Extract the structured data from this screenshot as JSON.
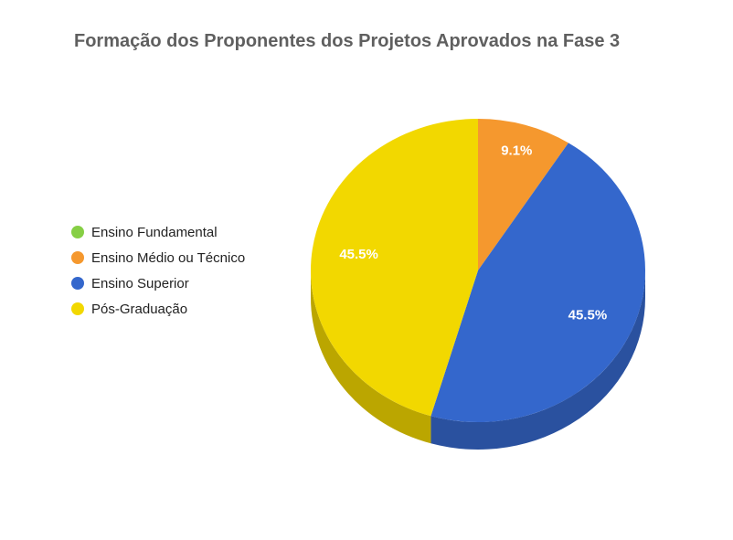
{
  "chart_data": {
    "type": "pie",
    "title": "Formação dos Proponentes dos Projetos Aprovados na Fase 3",
    "categories": [
      "Ensino Fundamental",
      "Ensino Médio ou Técnico",
      "Ensino Superior",
      "Pós-Graduação"
    ],
    "values": [
      0,
      9.1,
      45.5,
      45.5
    ],
    "data_labels": [
      "",
      "9.1%",
      "45.5%",
      "45.5%"
    ],
    "colors": [
      "#86cf45",
      "#f5982e",
      "#3467cc",
      "#f2d800"
    ],
    "side_colors": [
      "#5f9430",
      "#b36f20",
      "#2a519f",
      "#bba600"
    ],
    "three_d": true,
    "legend_position": "left"
  }
}
